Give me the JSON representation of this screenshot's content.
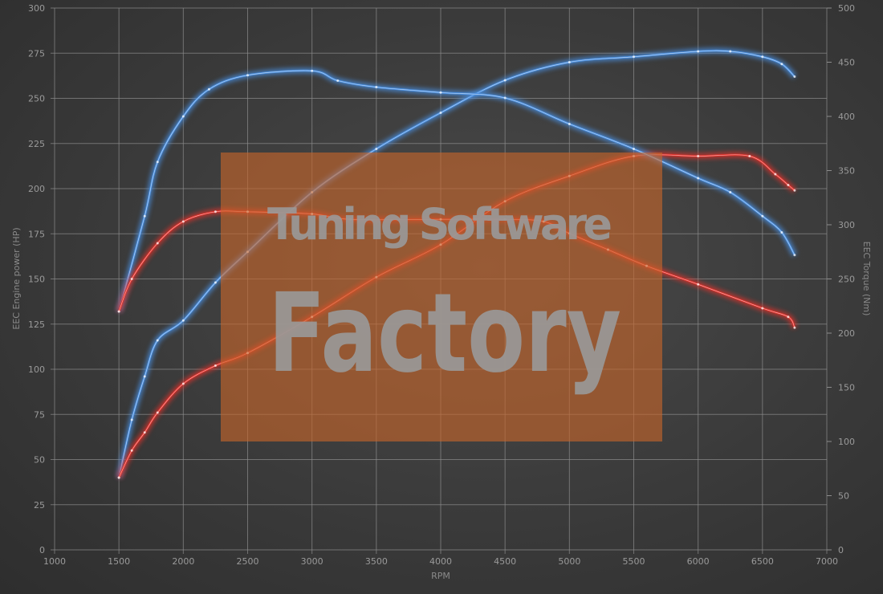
{
  "chart_data": {
    "type": "line",
    "title": "",
    "xlabel": "RPM",
    "ylabel_left": "EEC Engine power (HP)",
    "ylabel_right": "EEC Torque (Nm)",
    "xlim": [
      1000,
      7000
    ],
    "ylim_left": [
      0,
      300
    ],
    "ylim_right": [
      0,
      500
    ],
    "x_ticks": [
      1000,
      1500,
      2000,
      2500,
      3000,
      3500,
      4000,
      4500,
      5000,
      5500,
      6000,
      6500,
      7000
    ],
    "y_left_ticks": [
      0,
      25,
      50,
      75,
      100,
      125,
      150,
      175,
      200,
      225,
      250,
      275,
      300
    ],
    "y_right_ticks": [
      0,
      50,
      100,
      150,
      200,
      250,
      300,
      350,
      400,
      450,
      500
    ],
    "grid": true,
    "series": [
      {
        "axis": "left",
        "color": "#4a8fe0",
        "x": [
          1500,
          1600,
          1700,
          1800,
          2000,
          2250,
          2500,
          3000,
          3500,
          4000,
          4500,
          5000,
          5500,
          6000,
          6250,
          6500,
          6650,
          6750
        ],
        "y": [
          40,
          72,
          96,
          116,
          127,
          148,
          165,
          198,
          222,
          242,
          260,
          270,
          273,
          276,
          276,
          273,
          269,
          262
        ]
      },
      {
        "axis": "left",
        "color": "#e0302a",
        "x": [
          1500,
          1600,
          1700,
          1800,
          2000,
          2250,
          2500,
          3000,
          3500,
          4000,
          4500,
          5000,
          5500,
          6000,
          6400,
          6600,
          6700,
          6750
        ],
        "y": [
          40,
          55,
          65,
          76,
          92,
          102,
          109,
          129,
          151,
          169,
          193,
          207,
          218,
          218,
          218,
          208,
          202,
          199
        ]
      },
      {
        "axis": "right",
        "color": "#4a8fe0",
        "x": [
          1500,
          1700,
          1800,
          2000,
          2200,
          2500,
          3000,
          3200,
          3500,
          4000,
          4500,
          5000,
          5500,
          6000,
          6250,
          6500,
          6650,
          6750
        ],
        "y": [
          220,
          308,
          358,
          400,
          425,
          438,
          442,
          433,
          427,
          422,
          417,
          393,
          370,
          343,
          330,
          308,
          293,
          272
        ]
      },
      {
        "axis": "right",
        "color": "#e0302a",
        "x": [
          1500,
          1600,
          1800,
          2000,
          2250,
          2500,
          3000,
          3300,
          4000,
          4500,
          4800,
          5000,
          5300,
          5600,
          6000,
          6500,
          6700,
          6750
        ],
        "y": [
          220,
          250,
          283,
          303,
          312,
          312,
          310,
          305,
          305,
          305,
          303,
          292,
          277,
          262,
          245,
          223,
          215,
          205
        ]
      }
    ]
  },
  "watermark": {
    "line1": "Tuning Software",
    "line2": "Factory",
    "color": "#c8652a"
  }
}
